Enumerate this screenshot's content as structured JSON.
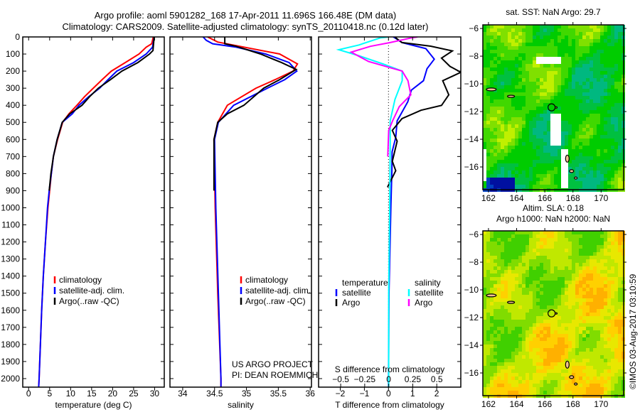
{
  "title": {
    "line1": "Argo profile: aoml 5901282_168 17-Apr-2011 11.696S 166.48E (DM data)",
    "line2": "Climatology: CARS2009. Satellite-adjusted climatology: synTS_20110418.nc (0.12d later)"
  },
  "colors": {
    "climatology": "#ff0000",
    "satellite": "#0000ff",
    "argo": "#000000",
    "salinity_satellite": "#00ffff",
    "salinity_argo": "#ff00ff"
  },
  "credit": "©IMOS 03-Aug-2017 03:10:59",
  "chart_data": [
    {
      "type": "line",
      "name": "temperature-profile",
      "xlabel": "temperature (deg C)",
      "ylabel": "",
      "xlim": [
        -1.4,
        32.3
      ],
      "ylim": [
        2050,
        0
      ],
      "xticks": [
        0,
        5,
        10,
        15,
        20,
        25,
        30
      ],
      "yticks": [
        0,
        100,
        200,
        300,
        400,
        500,
        600,
        700,
        800,
        900,
        1000,
        1100,
        1200,
        1300,
        1400,
        1500,
        1600,
        1700,
        1800,
        1900,
        2000
      ],
      "legend": [
        "climatology",
        "satellite-adj. clim.",
        "Argo(..raw -QC)"
      ],
      "legend_placement": "lower-center",
      "series": [
        {
          "name": "climatology",
          "color": "#ff0000",
          "depth": [
            0,
            40,
            60,
            100,
            150,
            200,
            250,
            300,
            350,
            400,
            450,
            500,
            600,
            700,
            800,
            900,
            1000,
            1200,
            1400,
            1600,
            1800,
            2000,
            2050
          ],
          "values": [
            29.7,
            29.3,
            28,
            26.3,
            23,
            19.7,
            17.5,
            15.4,
            13.3,
            11.5,
            9.6,
            8.1,
            6.9,
            5.9,
            5.4,
            5.0,
            4.6,
            4.0,
            3.5,
            3.1,
            2.8,
            2.5,
            2.4
          ]
        },
        {
          "name": "satellite-adj. clim.",
          "color": "#0000ff",
          "depth": [
            0,
            60,
            100,
            150,
            200,
            250,
            300,
            350,
            400,
            450,
            500,
            600,
            700,
            800,
            900,
            1000,
            1200,
            1400,
            1600,
            1800,
            2000,
            2050
          ],
          "values": [
            29.9,
            29.5,
            28,
            25,
            21,
            18.9,
            16.9,
            14.3,
            12,
            10.4,
            8.0,
            6.8,
            5.9,
            5.4,
            4.9,
            4.5,
            4.0,
            3.5,
            3.1,
            2.8,
            2.5,
            2.4
          ]
        },
        {
          "name": "Argo(..raw -QC)",
          "color": "#000000",
          "depth": [
            0,
            80,
            100,
            150,
            200,
            250,
            300,
            350,
            400,
            450,
            500,
            600,
            700,
            800,
            900
          ],
          "values": [
            29.9,
            29.6,
            28.8,
            26,
            22.2,
            19.5,
            16.6,
            14.5,
            12.7,
            9.8,
            8.0,
            6.8,
            5.9,
            5.3,
            4.9
          ]
        }
      ]
    },
    {
      "type": "line",
      "name": "salinity-profile",
      "xlabel": "salinity",
      "xlim": [
        33.8,
        36.02
      ],
      "ylim": [
        2050,
        0
      ],
      "xticks": [
        34,
        34.5,
        35,
        35.5,
        36
      ],
      "legend": [
        "climatology",
        "satellite-adj. clim.",
        "Argo(..raw -QC)"
      ],
      "legend_placement": "lower-center",
      "annotations": [
        "US ARGO PROJECT",
        "PI: DEAN ROEMMICH"
      ],
      "series": [
        {
          "name": "climatology",
          "color": "#ff0000",
          "depth": [
            0,
            30,
            100,
            158,
            200,
            250,
            300,
            400,
            500,
            600,
            1000,
            1500,
            2000,
            2050
          ],
          "values": [
            34.39,
            34.55,
            35.52,
            35.8,
            35.73,
            35.45,
            35.15,
            34.7,
            34.55,
            34.49,
            34.51,
            34.55,
            34.6,
            34.6
          ]
        },
        {
          "name": "satellite-adj. clim.",
          "color": "#0000ff",
          "depth": [
            0,
            20,
            40,
            60,
            100,
            150,
            200,
            250,
            300,
            400,
            500,
            600,
            1000,
            1500,
            2000,
            2050
          ],
          "values": [
            34.32,
            34.37,
            34.47,
            34.84,
            35.3,
            35.67,
            35.79,
            35.6,
            35.33,
            34.8,
            34.56,
            34.5,
            34.52,
            34.56,
            34.6,
            34.6
          ]
        },
        {
          "name": "Argo(..raw -QC)",
          "color": "#000000",
          "depth": [
            0,
            40,
            55,
            100,
            150,
            190,
            250,
            300,
            400,
            450,
            500,
            600,
            900
          ],
          "values": [
            34.66,
            34.66,
            34.84,
            35.22,
            35.55,
            35.78,
            35.52,
            35.27,
            34.96,
            34.7,
            34.55,
            34.49,
            34.49
          ]
        }
      ]
    },
    {
      "type": "line",
      "name": "difference-profile",
      "xlabel": "T difference from climatology",
      "x2label": "S difference from climatology",
      "xlim": [
        -2.9,
        3.0
      ],
      "x2lim": [
        -0.73,
        0.75
      ],
      "ylim": [
        2050,
        0
      ],
      "xticks": [
        -2,
        -1,
        0,
        1,
        2
      ],
      "x2ticks": [
        -0.5,
        -0.25,
        0,
        0.25,
        0.5
      ],
      "legend_groups": [
        {
          "title": "temperature",
          "items": [
            "satellite",
            "Argo"
          ]
        },
        {
          "title": "salinity",
          "items": [
            "satellite",
            "Argo"
          ]
        }
      ],
      "series": [
        {
          "name": "temperature satellite",
          "axis": "T",
          "color": "#0000ff",
          "depth": [
            0,
            5,
            33,
            68,
            130,
            186,
            256,
            311,
            380,
            491,
            589,
            672,
            783,
            985,
            1500,
            2050
          ],
          "values": [
            0.2,
            0.26,
            0.56,
            1.55,
            1.9,
            1.6,
            1.45,
            0.95,
            0.8,
            0.36,
            0.3,
            0.15,
            0.14,
            0.1,
            0.02,
            0.0
          ]
        },
        {
          "name": "temperature Argo",
          "axis": "T",
          "color": "#000000",
          "depth": [
            0,
            5,
            33,
            54,
            82,
            124,
            172,
            207,
            256,
            339,
            401,
            429,
            478,
            547,
            610,
            728,
            783,
            880
          ],
          "values": [
            0.3,
            0.3,
            0.56,
            1.75,
            2.65,
            2.2,
            2.55,
            3.0,
            2.25,
            2.5,
            2.2,
            1.35,
            0.56,
            0.16,
            0.36,
            0.16,
            0.3,
            -0.04
          ]
        },
        {
          "name": "salinity satellite",
          "axis": "S",
          "color": "#00ffff",
          "depth": [
            0,
            5,
            47,
            75,
            110,
            158,
            200,
            256,
            366,
            491,
            644,
            1000,
            1500,
            2050
          ],
          "values": [
            0,
            -0.085,
            -0.31,
            -0.52,
            -0.31,
            -0.06,
            0.14,
            0.14,
            0.065,
            0.015,
            0.015,
            0.01,
            0.0,
            0.0
          ]
        },
        {
          "name": "salinity Argo",
          "axis": "S",
          "color": "#ff00ff",
          "depth": [
            0,
            5,
            33,
            55,
            89,
            144,
            200,
            256,
            339,
            408,
            491,
            547,
            700
          ],
          "values": [
            0.3,
            0.24,
            0.015,
            -0.19,
            -0.39,
            -0.21,
            0.14,
            0.2,
            0.23,
            0.11,
            0.04,
            0.0,
            -0.01
          ]
        }
      ]
    }
  ],
  "maps": [
    {
      "name": "sst-map",
      "title": [
        "sat. SST: NaN Argo: 29.7"
      ],
      "lon_ticks": [
        162,
        164,
        166,
        168,
        170
      ],
      "lat_ticks": [
        -6,
        -8,
        -10,
        -12,
        -14,
        -16
      ],
      "lon_range": [
        161.6,
        171.6
      ],
      "lat_range": [
        -5.74,
        -17.64
      ],
      "argo_position": {
        "lon": 166.48,
        "lat": -11.696
      },
      "palette": "sst"
    },
    {
      "name": "sla-map",
      "title": [
        "Altim. SLA: 0.18",
        "Argo h1000: NaN h2000: NaN"
      ],
      "lon_ticks": [
        162,
        164,
        166,
        168,
        170
      ],
      "lat_ticks": [
        -6,
        -8,
        -10,
        -12,
        -14,
        -16
      ],
      "lon_range": [
        161.6,
        171.6
      ],
      "lat_range": [
        -5.74,
        -17.64
      ],
      "argo_position": {
        "lon": 166.48,
        "lat": -11.696
      },
      "palette": "sla"
    }
  ]
}
